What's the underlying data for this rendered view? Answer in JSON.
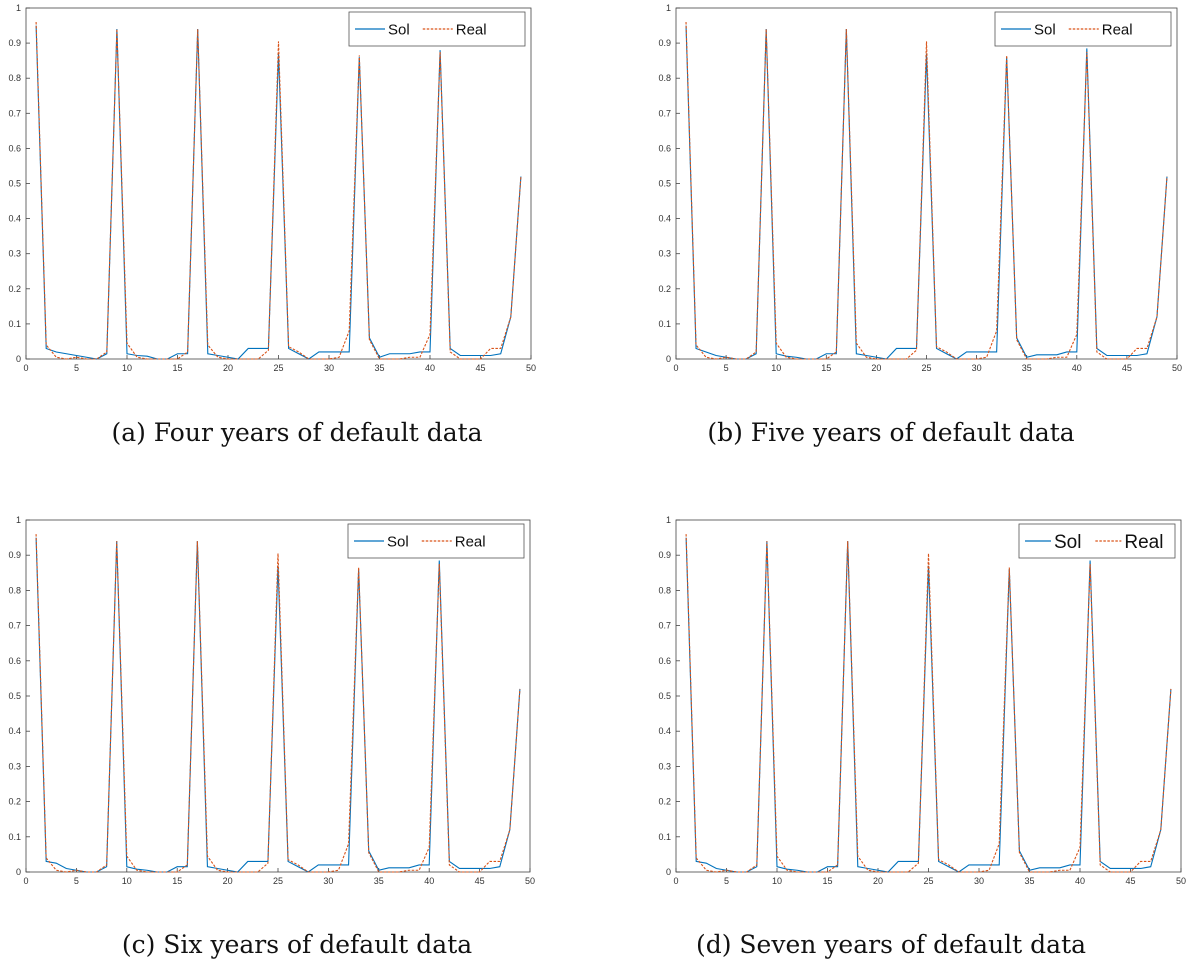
{
  "colors": {
    "sol": "#0072BD",
    "real": "#D95319"
  },
  "chart_data": [
    {
      "type": "line",
      "caption": "(a) Four years of default data",
      "xlim": [
        0,
        50
      ],
      "ylim": [
        0,
        1
      ],
      "xticks": [
        0,
        5,
        10,
        15,
        20,
        25,
        30,
        35,
        40,
        45,
        50
      ],
      "yticks": [
        0,
        0.1,
        0.2,
        0.3,
        0.4,
        0.5,
        0.6,
        0.7,
        0.8,
        0.9,
        1
      ],
      "legend": {
        "position": "top-right"
      },
      "x": [
        1,
        2,
        3,
        4,
        5,
        6,
        7,
        8,
        9,
        10,
        11,
        12,
        13,
        14,
        15,
        16,
        17,
        18,
        19,
        20,
        21,
        22,
        23,
        24,
        25,
        26,
        27,
        28,
        29,
        30,
        31,
        32,
        33,
        34,
        35,
        36,
        37,
        38,
        39,
        40,
        41,
        42,
        43,
        44,
        45,
        46,
        47,
        48,
        49
      ],
      "series": [
        {
          "name": "Sol",
          "style": "solid",
          "values": [
            0.95,
            0.03,
            0.02,
            0.015,
            0.01,
            0.005,
            0.0,
            0.015,
            0.94,
            0.015,
            0.01,
            0.008,
            0.0,
            0.0,
            0.015,
            0.015,
            0.94,
            0.015,
            0.01,
            0.005,
            0.0,
            0.03,
            0.03,
            0.03,
            0.87,
            0.03,
            0.015,
            0.0,
            0.02,
            0.02,
            0.02,
            0.02,
            0.86,
            0.06,
            0.005,
            0.015,
            0.015,
            0.015,
            0.02,
            0.02,
            0.88,
            0.03,
            0.01,
            0.01,
            0.01,
            0.01,
            0.015,
            0.12,
            0.52
          ]
        },
        {
          "name": "Real",
          "style": "dashed",
          "values": [
            0.96,
            0.04,
            0.005,
            0.0,
            0.005,
            0.0,
            0.0,
            0.02,
            0.94,
            0.045,
            0.005,
            0.0,
            0.0,
            0.0,
            0.0,
            0.02,
            0.94,
            0.04,
            0.005,
            0.0,
            0.0,
            0.0,
            0.0,
            0.025,
            0.905,
            0.035,
            0.02,
            0.0,
            0.0,
            0.0,
            0.005,
            0.08,
            0.865,
            0.055,
            0.0,
            0.0,
            0.0,
            0.005,
            0.005,
            0.07,
            0.875,
            0.02,
            0.0,
            0.0,
            0.0,
            0.03,
            0.03,
            0.12,
            0.52
          ]
        }
      ]
    },
    {
      "type": "line",
      "caption": "(b) Five years of default data",
      "xlim": [
        0,
        50
      ],
      "ylim": [
        0,
        1
      ],
      "xticks": [
        0,
        5,
        10,
        15,
        20,
        25,
        30,
        35,
        40,
        45,
        50
      ],
      "yticks": [
        0,
        0.1,
        0.2,
        0.3,
        0.4,
        0.5,
        0.6,
        0.7,
        0.8,
        0.9,
        1
      ],
      "legend": {
        "position": "top-right"
      },
      "x": [
        1,
        2,
        3,
        4,
        5,
        6,
        7,
        8,
        9,
        10,
        11,
        12,
        13,
        14,
        15,
        16,
        17,
        18,
        19,
        20,
        21,
        22,
        23,
        24,
        25,
        26,
        27,
        28,
        29,
        30,
        31,
        32,
        33,
        34,
        35,
        36,
        37,
        38,
        39,
        40,
        41,
        42,
        43,
        44,
        45,
        46,
        47,
        48,
        49
      ],
      "series": [
        {
          "name": "Sol",
          "style": "solid",
          "values": [
            0.95,
            0.03,
            0.02,
            0.01,
            0.005,
            0.0,
            0.0,
            0.015,
            0.94,
            0.015,
            0.008,
            0.005,
            0.0,
            0.0,
            0.015,
            0.015,
            0.94,
            0.015,
            0.01,
            0.005,
            0.0,
            0.03,
            0.03,
            0.03,
            0.87,
            0.03,
            0.015,
            0.0,
            0.02,
            0.02,
            0.02,
            0.02,
            0.86,
            0.06,
            0.005,
            0.012,
            0.012,
            0.012,
            0.02,
            0.02,
            0.885,
            0.03,
            0.01,
            0.01,
            0.01,
            0.01,
            0.015,
            0.12,
            0.52
          ]
        },
        {
          "name": "Real",
          "style": "dashed",
          "values": [
            0.96,
            0.04,
            0.005,
            0.0,
            0.005,
            0.0,
            0.0,
            0.02,
            0.94,
            0.045,
            0.005,
            0.0,
            0.0,
            0.0,
            0.0,
            0.02,
            0.94,
            0.045,
            0.005,
            0.0,
            0.0,
            0.0,
            0.0,
            0.025,
            0.905,
            0.035,
            0.02,
            0.0,
            0.0,
            0.0,
            0.005,
            0.08,
            0.865,
            0.055,
            0.0,
            0.0,
            0.0,
            0.005,
            0.005,
            0.07,
            0.875,
            0.02,
            0.0,
            0.0,
            0.0,
            0.03,
            0.03,
            0.12,
            0.52
          ]
        }
      ]
    },
    {
      "type": "line",
      "caption": "(c) Six years of default data",
      "xlim": [
        0,
        50
      ],
      "ylim": [
        0,
        1
      ],
      "xticks": [
        0,
        5,
        10,
        15,
        20,
        25,
        30,
        35,
        40,
        45,
        50
      ],
      "yticks": [
        0,
        0.1,
        0.2,
        0.3,
        0.4,
        0.5,
        0.6,
        0.7,
        0.8,
        0.9,
        1
      ],
      "legend": {
        "position": "top-right"
      },
      "x": [
        1,
        2,
        3,
        4,
        5,
        6,
        7,
        8,
        9,
        10,
        11,
        12,
        13,
        14,
        15,
        16,
        17,
        18,
        19,
        20,
        21,
        22,
        23,
        24,
        25,
        26,
        27,
        28,
        29,
        30,
        31,
        32,
        33,
        34,
        35,
        36,
        37,
        38,
        39,
        40,
        41,
        42,
        43,
        44,
        45,
        46,
        47,
        48,
        49
      ],
      "series": [
        {
          "name": "Sol",
          "style": "solid",
          "values": [
            0.95,
            0.03,
            0.025,
            0.01,
            0.005,
            0.0,
            0.0,
            0.015,
            0.94,
            0.015,
            0.008,
            0.005,
            0.0,
            0.0,
            0.015,
            0.015,
            0.94,
            0.015,
            0.01,
            0.005,
            0.0,
            0.03,
            0.03,
            0.03,
            0.87,
            0.03,
            0.015,
            0.0,
            0.02,
            0.02,
            0.02,
            0.02,
            0.86,
            0.06,
            0.005,
            0.012,
            0.012,
            0.012,
            0.02,
            0.02,
            0.885,
            0.03,
            0.01,
            0.01,
            0.01,
            0.01,
            0.015,
            0.12,
            0.52
          ]
        },
        {
          "name": "Real",
          "style": "dashed",
          "values": [
            0.96,
            0.04,
            0.005,
            0.0,
            0.005,
            0.0,
            0.0,
            0.02,
            0.94,
            0.045,
            0.005,
            0.0,
            0.0,
            0.0,
            0.0,
            0.02,
            0.94,
            0.045,
            0.005,
            0.0,
            0.0,
            0.0,
            0.0,
            0.025,
            0.905,
            0.035,
            0.02,
            0.0,
            0.0,
            0.0,
            0.005,
            0.08,
            0.865,
            0.055,
            0.0,
            0.0,
            0.0,
            0.005,
            0.005,
            0.07,
            0.875,
            0.02,
            0.0,
            0.0,
            0.0,
            0.03,
            0.03,
            0.12,
            0.52
          ]
        }
      ]
    },
    {
      "type": "line",
      "caption": "(d) Seven years of default data",
      "xlim": [
        0,
        50
      ],
      "ylim": [
        0,
        1
      ],
      "xticks": [
        0,
        5,
        10,
        15,
        20,
        25,
        30,
        35,
        40,
        45,
        50
      ],
      "yticks": [
        0,
        0.1,
        0.2,
        0.3,
        0.4,
        0.5,
        0.6,
        0.7,
        0.8,
        0.9,
        1
      ],
      "legend": {
        "position": "top-right"
      },
      "x": [
        1,
        2,
        3,
        4,
        5,
        6,
        7,
        8,
        9,
        10,
        11,
        12,
        13,
        14,
        15,
        16,
        17,
        18,
        19,
        20,
        21,
        22,
        23,
        24,
        25,
        26,
        27,
        28,
        29,
        30,
        31,
        32,
        33,
        34,
        35,
        36,
        37,
        38,
        39,
        40,
        41,
        42,
        43,
        44,
        45,
        46,
        47,
        48,
        49
      ],
      "series": [
        {
          "name": "Sol",
          "style": "solid",
          "values": [
            0.95,
            0.03,
            0.025,
            0.01,
            0.005,
            0.0,
            0.0,
            0.015,
            0.94,
            0.015,
            0.008,
            0.005,
            0.0,
            0.0,
            0.015,
            0.015,
            0.94,
            0.015,
            0.01,
            0.005,
            0.0,
            0.03,
            0.03,
            0.03,
            0.87,
            0.03,
            0.015,
            0.0,
            0.02,
            0.02,
            0.02,
            0.02,
            0.86,
            0.06,
            0.005,
            0.012,
            0.012,
            0.012,
            0.02,
            0.02,
            0.885,
            0.03,
            0.01,
            0.01,
            0.01,
            0.01,
            0.015,
            0.12,
            0.52
          ]
        },
        {
          "name": "Real",
          "style": "dashed",
          "values": [
            0.96,
            0.04,
            0.005,
            0.0,
            0.005,
            0.0,
            0.0,
            0.02,
            0.94,
            0.045,
            0.005,
            0.0,
            0.0,
            0.0,
            0.0,
            0.02,
            0.94,
            0.045,
            0.005,
            0.0,
            0.0,
            0.0,
            0.0,
            0.025,
            0.905,
            0.035,
            0.02,
            0.0,
            0.0,
            0.0,
            0.005,
            0.08,
            0.865,
            0.055,
            0.0,
            0.0,
            0.0,
            0.005,
            0.005,
            0.07,
            0.875,
            0.02,
            0.0,
            0.0,
            0.0,
            0.03,
            0.03,
            0.12,
            0.52
          ]
        }
      ]
    }
  ]
}
